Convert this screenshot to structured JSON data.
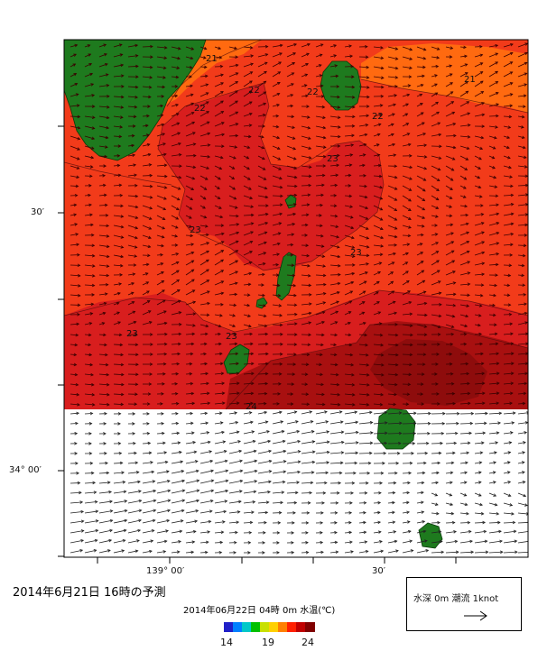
{
  "axis": {
    "lat_labels": [
      "30′",
      "34° 00′"
    ],
    "lon_labels": [
      "139° 00′",
      "30′"
    ]
  },
  "contour_labels": [
    "21",
    "21",
    "22",
    "22",
    "22",
    "22",
    "23",
    "23",
    "23",
    "23",
    "23",
    "24"
  ],
  "caption": {
    "issued": "2014年6月21日  16時の予測",
    "valid": "2014年06月22日 04時 0m 水温(℃)"
  },
  "legend": {
    "text": "水深 0m 潮流 1knot",
    "arrow": "→"
  },
  "colorbar": {
    "ticks": [
      "14",
      "19",
      "24"
    ],
    "colors": [
      "#2020c8",
      "#0080ff",
      "#00c8c8",
      "#00c000",
      "#c8e000",
      "#ffd000",
      "#ff8000",
      "#ff2000",
      "#c00000",
      "#800000"
    ]
  },
  "colors": {
    "land": "#1e7a1e",
    "sea_21": "#ff6a10",
    "sea_22": "#f23b1a",
    "sea_23": "#d81e1e",
    "sea_24": "#a81010"
  },
  "icons": [
    "current-vector-arrow"
  ]
}
